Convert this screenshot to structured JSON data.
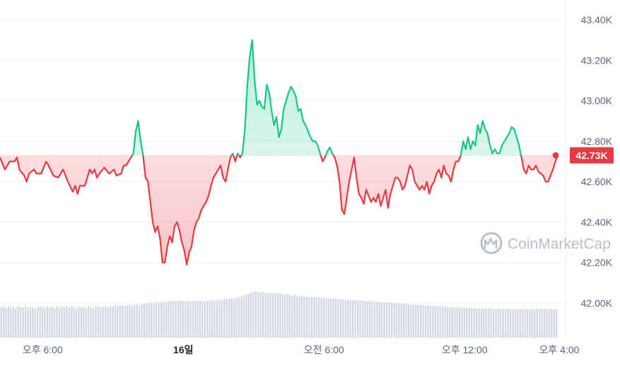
{
  "chart_data": {
    "type": "area",
    "y_axis_position": "right",
    "ylim": [
      41.88,
      43.44
    ],
    "y_unit_suffix": "K",
    "yticks": [
      {
        "value": 43.4,
        "label": "43.40K"
      },
      {
        "value": 43.2,
        "label": "43.20K"
      },
      {
        "value": 43.0,
        "label": "43.00K"
      },
      {
        "value": 42.8,
        "label": "42.80K"
      },
      {
        "value": 42.6,
        "label": "42.60K"
      },
      {
        "value": 42.4,
        "label": "42.40K"
      },
      {
        "value": 42.2,
        "label": "42.20K"
      },
      {
        "value": 42.0,
        "label": "42.00K"
      }
    ],
    "xticks": [
      {
        "index": 10,
        "label": "오후 6:00",
        "bold": false
      },
      {
        "index": 68,
        "label": "16일",
        "bold": true
      },
      {
        "index": 126,
        "label": "오전 6:00",
        "bold": false
      },
      {
        "index": 184,
        "label": "오후 12:00",
        "bold": false
      },
      {
        "index": 223,
        "label": "오후 4:00",
        "bold": false
      }
    ],
    "x_count": 230,
    "reference_value": 42.73,
    "current_price_label": "42.73K",
    "colors": {
      "up": "#16c784",
      "down": "#ea3943",
      "grid": "#eff2f5",
      "reference_line": "#c4c9d2",
      "volume": "#cfd6e4",
      "label_bg": "#ea3943",
      "label_text": "#ffffff"
    },
    "series": [
      {
        "keypoints": [
          [
            0,
            42.72
          ],
          [
            2,
            42.66
          ],
          [
            4,
            42.7
          ],
          [
            6,
            42.7
          ],
          [
            7,
            42.72
          ],
          [
            8,
            42.66
          ],
          [
            10,
            42.63
          ],
          [
            11,
            42.6
          ],
          [
            12,
            42.64
          ],
          [
            14,
            42.66
          ],
          [
            15,
            42.64
          ],
          [
            17,
            42.64
          ],
          [
            19,
            42.7
          ],
          [
            20,
            42.68
          ],
          [
            22,
            42.63
          ],
          [
            24,
            42.62
          ],
          [
            26,
            42.66
          ],
          [
            28,
            42.6
          ],
          [
            30,
            42.55
          ],
          [
            31,
            42.58
          ],
          [
            32,
            42.54
          ],
          [
            33,
            42.58
          ],
          [
            35,
            42.58
          ],
          [
            37,
            42.66
          ],
          [
            38,
            42.64
          ],
          [
            39,
            42.66
          ],
          [
            40,
            42.62
          ],
          [
            41,
            42.64
          ],
          [
            43,
            42.67
          ],
          [
            45,
            42.64
          ],
          [
            47,
            42.66
          ],
          [
            48,
            42.63
          ],
          [
            50,
            42.64
          ],
          [
            51,
            42.68
          ],
          [
            52,
            42.68
          ],
          [
            53,
            42.7
          ],
          [
            54,
            42.72
          ],
          [
            55,
            42.74
          ],
          [
            56,
            42.85
          ],
          [
            57,
            42.9
          ],
          [
            58,
            42.8
          ],
          [
            59,
            42.73
          ],
          [
            60,
            42.62
          ],
          [
            61,
            42.6
          ],
          [
            62,
            42.5
          ],
          [
            63,
            42.4
          ],
          [
            64,
            42.35
          ],
          [
            65,
            42.38
          ],
          [
            66,
            42.32
          ],
          [
            67,
            42.2
          ],
          [
            68,
            42.2
          ],
          [
            69,
            42.28
          ],
          [
            70,
            42.33
          ],
          [
            71,
            42.3
          ],
          [
            72,
            42.38
          ],
          [
            73,
            42.4
          ],
          [
            74,
            42.36
          ],
          [
            75,
            42.3
          ],
          [
            76,
            42.26
          ],
          [
            77,
            42.19
          ],
          [
            78,
            42.25
          ],
          [
            79,
            42.28
          ],
          [
            80,
            42.36
          ],
          [
            81,
            42.4
          ],
          [
            82,
            42.42
          ],
          [
            83,
            42.46
          ],
          [
            84,
            42.48
          ],
          [
            85,
            42.5
          ],
          [
            86,
            42.53
          ],
          [
            87,
            42.58
          ],
          [
            88,
            42.62
          ],
          [
            89,
            42.64
          ],
          [
            90,
            42.66
          ],
          [
            91,
            42.68
          ],
          [
            92,
            42.62
          ],
          [
            93,
            42.6
          ],
          [
            94,
            42.66
          ],
          [
            95,
            42.72
          ],
          [
            96,
            42.74
          ],
          [
            97,
            42.7
          ],
          [
            98,
            42.74
          ],
          [
            99,
            42.72
          ],
          [
            100,
            42.74
          ],
          [
            101,
            42.86
          ],
          [
            102,
            43.08
          ],
          [
            103,
            43.22
          ],
          [
            104,
            43.3
          ],
          [
            105,
            43.1
          ],
          [
            106,
            42.98
          ],
          [
            107,
            43.0
          ],
          [
            108,
            42.97
          ],
          [
            109,
            42.96
          ],
          [
            110,
            43.08
          ],
          [
            111,
            43.04
          ],
          [
            112,
            42.95
          ],
          [
            113,
            42.88
          ],
          [
            114,
            42.92
          ],
          [
            115,
            42.82
          ],
          [
            116,
            42.86
          ],
          [
            117,
            42.96
          ],
          [
            118,
            43.0
          ],
          [
            119,
            43.04
          ],
          [
            120,
            43.07
          ],
          [
            121,
            43.05
          ],
          [
            122,
            43.02
          ],
          [
            123,
            42.95
          ],
          [
            124,
            42.96
          ],
          [
            125,
            42.9
          ],
          [
            126,
            42.88
          ],
          [
            127,
            42.85
          ],
          [
            128,
            42.82
          ],
          [
            129,
            42.8
          ],
          [
            130,
            42.8
          ],
          [
            131,
            42.78
          ],
          [
            132,
            42.74
          ],
          [
            133,
            42.7
          ],
          [
            134,
            42.72
          ],
          [
            135,
            42.75
          ],
          [
            136,
            42.77
          ],
          [
            137,
            42.74
          ],
          [
            138,
            42.72
          ],
          [
            139,
            42.68
          ],
          [
            140,
            42.6
          ],
          [
            141,
            42.46
          ],
          [
            142,
            42.44
          ],
          [
            143,
            42.52
          ],
          [
            144,
            42.6
          ],
          [
            145,
            42.66
          ],
          [
            146,
            42.72
          ],
          [
            147,
            42.62
          ],
          [
            148,
            42.54
          ],
          [
            149,
            42.52
          ],
          [
            150,
            42.49
          ],
          [
            151,
            42.56
          ],
          [
            152,
            42.53
          ],
          [
            153,
            42.5
          ],
          [
            154,
            42.52
          ],
          [
            155,
            42.5
          ],
          [
            156,
            42.54
          ],
          [
            157,
            42.48
          ],
          [
            158,
            42.52
          ],
          [
            159,
            42.56
          ],
          [
            160,
            42.47
          ],
          [
            161,
            42.54
          ],
          [
            162,
            42.58
          ],
          [
            163,
            42.62
          ],
          [
            164,
            42.62
          ],
          [
            165,
            42.6
          ],
          [
            166,
            42.56
          ],
          [
            167,
            42.58
          ],
          [
            168,
            42.63
          ],
          [
            169,
            42.68
          ],
          [
            170,
            42.66
          ],
          [
            171,
            42.6
          ],
          [
            172,
            42.58
          ],
          [
            173,
            42.56
          ],
          [
            174,
            42.58
          ],
          [
            175,
            42.56
          ],
          [
            176,
            42.6
          ],
          [
            177,
            42.54
          ],
          [
            178,
            42.58
          ],
          [
            179,
            42.6
          ],
          [
            180,
            42.64
          ],
          [
            181,
            42.66
          ],
          [
            182,
            42.62
          ],
          [
            183,
            42.68
          ],
          [
            184,
            42.64
          ],
          [
            185,
            42.63
          ],
          [
            186,
            42.6
          ],
          [
            187,
            42.66
          ],
          [
            188,
            42.7
          ],
          [
            189,
            42.7
          ],
          [
            190,
            42.73
          ],
          [
            191,
            42.8
          ],
          [
            192,
            42.76
          ],
          [
            193,
            42.82
          ],
          [
            194,
            42.76
          ],
          [
            195,
            42.8
          ],
          [
            196,
            42.78
          ],
          [
            197,
            42.88
          ],
          [
            198,
            42.84
          ],
          [
            199,
            42.9
          ],
          [
            200,
            42.86
          ],
          [
            201,
            42.84
          ],
          [
            202,
            42.78
          ],
          [
            203,
            42.74
          ],
          [
            204,
            42.76
          ],
          [
            205,
            42.74
          ],
          [
            206,
            42.74
          ],
          [
            207,
            42.78
          ],
          [
            208,
            42.8
          ],
          [
            209,
            42.82
          ],
          [
            210,
            42.84
          ],
          [
            211,
            42.87
          ],
          [
            212,
            42.86
          ],
          [
            213,
            42.82
          ],
          [
            214,
            42.78
          ],
          [
            215,
            42.72
          ],
          [
            216,
            42.66
          ],
          [
            217,
            42.64
          ],
          [
            218,
            42.68
          ],
          [
            219,
            42.66
          ],
          [
            220,
            42.66
          ],
          [
            221,
            42.68
          ],
          [
            222,
            42.65
          ],
          [
            223,
            42.64
          ],
          [
            224,
            42.63
          ],
          [
            225,
            42.6
          ],
          [
            226,
            42.6
          ],
          [
            227,
            42.63
          ],
          [
            228,
            42.66
          ],
          [
            229,
            42.7
          ],
          [
            230,
            42.73
          ]
        ]
      }
    ],
    "volume_note": "bottom histogram, no printed values",
    "volume": [
      0.58,
      0.6,
      0.56,
      0.6,
      0.58,
      0.59,
      0.56,
      0.6,
      0.58,
      0.58,
      0.6,
      0.57,
      0.59,
      0.58,
      0.56,
      0.59,
      0.6,
      0.58,
      0.57,
      0.6,
      0.58,
      0.59,
      0.56,
      0.6,
      0.57,
      0.59,
      0.58,
      0.6,
      0.57,
      0.59,
      0.58,
      0.56,
      0.6,
      0.58,
      0.59,
      0.57,
      0.6,
      0.58,
      0.56,
      0.59,
      0.6,
      0.58,
      0.59,
      0.6,
      0.58,
      0.59,
      0.6,
      0.62,
      0.6,
      0.61,
      0.62,
      0.6,
      0.62,
      0.63,
      0.61,
      0.63,
      0.64,
      0.62,
      0.65,
      0.64,
      0.66,
      0.65,
      0.67,
      0.66,
      0.68,
      0.67,
      0.68,
      0.69,
      0.68,
      0.7,
      0.69,
      0.7,
      0.69,
      0.7,
      0.71,
      0.7,
      0.69,
      0.7,
      0.7,
      0.69,
      0.71,
      0.7,
      0.7,
      0.69,
      0.7,
      0.71,
      0.7,
      0.72,
      0.71,
      0.72,
      0.73,
      0.72,
      0.74,
      0.73,
      0.74,
      0.75,
      0.74,
      0.76,
      0.77,
      0.78,
      0.8,
      0.82,
      0.84,
      0.86,
      0.87,
      0.88,
      0.87,
      0.86,
      0.87,
      0.86,
      0.85,
      0.86,
      0.85,
      0.84,
      0.85,
      0.84,
      0.83,
      0.82,
      0.83,
      0.82,
      0.8,
      0.81,
      0.8,
      0.79,
      0.8,
      0.78,
      0.79,
      0.78,
      0.77,
      0.78,
      0.76,
      0.77,
      0.76,
      0.75,
      0.76,
      0.75,
      0.74,
      0.75,
      0.74,
      0.73,
      0.74,
      0.73,
      0.72,
      0.73,
      0.72,
      0.71,
      0.72,
      0.71,
      0.7,
      0.71,
      0.7,
      0.69,
      0.7,
      0.69,
      0.68,
      0.69,
      0.68,
      0.67,
      0.68,
      0.67,
      0.66,
      0.67,
      0.66,
      0.65,
      0.66,
      0.65,
      0.64,
      0.65,
      0.64,
      0.63,
      0.64,
      0.63,
      0.62,
      0.63,
      0.62,
      0.61,
      0.62,
      0.61,
      0.6,
      0.61,
      0.6,
      0.59,
      0.6,
      0.59,
      0.58,
      0.59,
      0.58,
      0.57,
      0.58,
      0.57,
      0.58,
      0.57,
      0.56,
      0.57,
      0.56,
      0.57,
      0.56,
      0.55,
      0.56,
      0.55,
      0.56,
      0.55,
      0.56,
      0.55,
      0.54,
      0.55,
      0.54,
      0.55,
      0.54,
      0.55,
      0.54,
      0.55,
      0.54,
      0.55,
      0.54,
      0.55,
      0.54,
      0.55,
      0.54,
      0.55,
      0.54,
      0.55,
      0.54,
      0.55,
      0.54,
      0.55,
      0.54,
      0.55,
      0.54,
      0.55
    ]
  },
  "watermark": {
    "text": "CoinMarketCap",
    "color": "#b8c0cc"
  }
}
